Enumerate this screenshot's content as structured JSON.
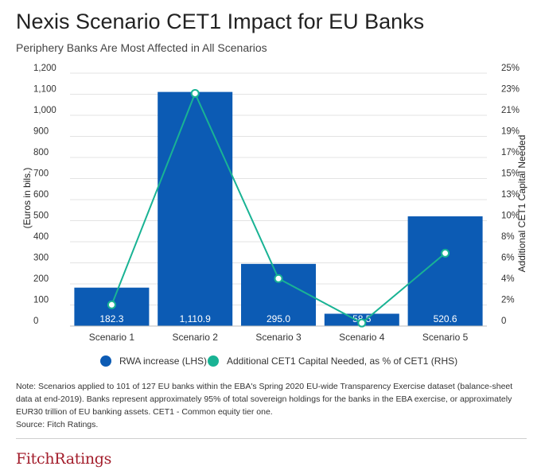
{
  "header": {
    "title": "Nexis Scenario CET1 Impact for EU Banks",
    "subtitle": "Periphery Banks Are Most Affected in All Scenarios"
  },
  "chart_data": {
    "type": "bar",
    "categories": [
      "Scenario 1",
      "Scenario 2",
      "Scenario 3",
      "Scenario 4",
      "Scenario 5"
    ],
    "series": [
      {
        "name": "RWA increase (LHS)",
        "type": "bar",
        "axis": "left",
        "values": [
          182.3,
          1110.9,
          295.0,
          58.5,
          520.6
        ],
        "labels": [
          "182.3",
          "1,110.9",
          "295.0",
          "58.5",
          "520.6"
        ],
        "color": "#0c5bb4"
      },
      {
        "name": "Additional CET1 Capital Needed, as % of CET1 (RHS)",
        "type": "line",
        "axis": "right",
        "values": [
          2.1,
          23.0,
          4.7,
          0.3,
          7.2
        ],
        "color": "#19b394"
      }
    ],
    "y_left": {
      "label": "(Euros in bils.)",
      "range": [
        0,
        1200
      ],
      "ticks": [
        0,
        100,
        200,
        300,
        400,
        500,
        600,
        700,
        800,
        900,
        1000,
        1100,
        1200
      ],
      "tick_labels": [
        "0",
        "100",
        "200",
        "300",
        "400",
        "500",
        "600",
        "700",
        "800",
        "900",
        "1,000",
        "1,100",
        "1,200"
      ]
    },
    "y_right": {
      "label": "Additional CET1 Capital Needed",
      "range": [
        0,
        25
      ],
      "ticks": [
        0,
        2,
        4,
        6,
        8,
        10,
        13,
        15,
        17,
        19,
        21,
        23,
        25
      ],
      "tick_labels": [
        "0",
        "2%",
        "4%",
        "6%",
        "8%",
        "10%",
        "13%",
        "15%",
        "17%",
        "19%",
        "21%",
        "23%",
        "25%"
      ]
    },
    "grid": true,
    "legend_position": "bottom"
  },
  "notes": {
    "text": "Note: Scenarios applied to 101 of 127 EU banks within the EBA's Spring 2020 EU-wide Transparency Exercise dataset (balance-sheet data at end-2019). Banks represent approximately 95% of total sovereign holdings for the banks in the EBA exercise, or approximately EUR30 trillion of EU banking assets. CET1 - Common equity tier one.",
    "source": "Source: Fitch Ratings."
  },
  "logo": {
    "text": "FitchRatings"
  },
  "colors": {
    "bar": "#0c5bb4",
    "line": "#19b394",
    "grid": "#e3e3e3",
    "logo": "#a31d2b"
  }
}
